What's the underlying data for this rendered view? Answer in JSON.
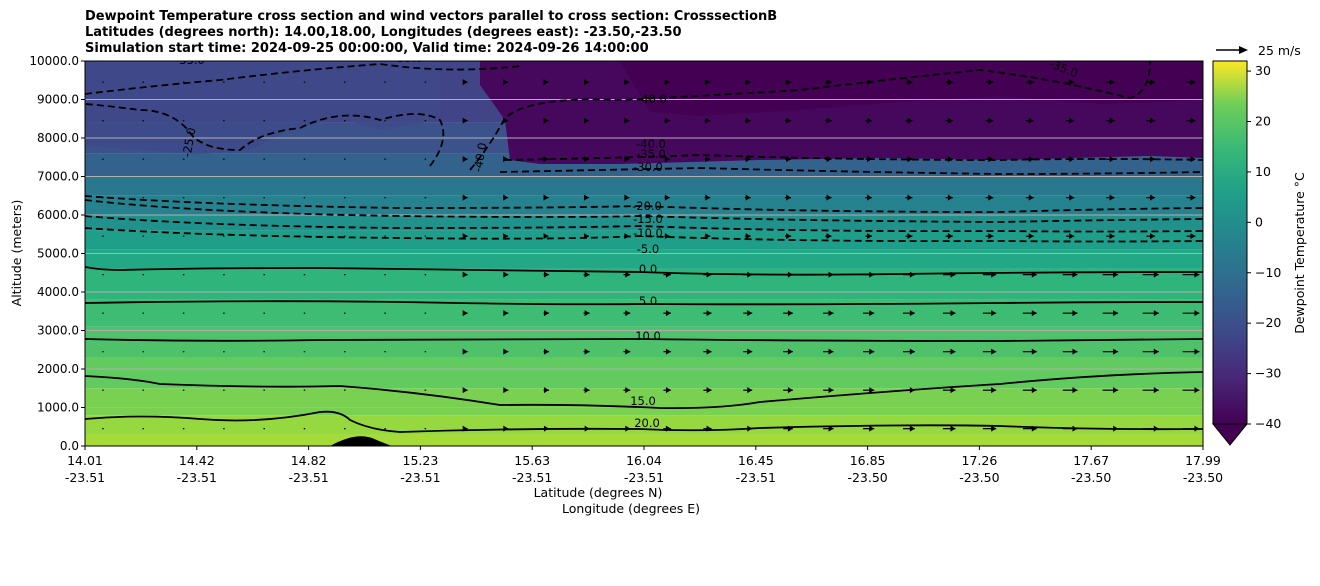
{
  "titles": [
    "Dewpoint Temperature cross section and wind vectors parallel to cross section: CrosssectionB",
    "Latitudes (degrees north): 14.00,18.00, Longitudes (degrees east): -23.50,-23.50",
    "Simulation start time: 2024-09-25 00:00:00, Valid time: 2024-09-26 14:00:00"
  ],
  "chart_data": {
    "type": "heatmap",
    "ylabel": "Altitude (meters)",
    "xlabel_lines": [
      "Latitude (degrees N)",
      "Longitude (degrees E)"
    ],
    "ylim": [
      0,
      10000
    ],
    "y_ticks": [
      "0.0",
      "1000.0",
      "2000.0",
      "3000.0",
      "4000.0",
      "5000.0",
      "6000.0",
      "7000.0",
      "8000.0",
      "9000.0",
      "10000.0"
    ],
    "x_ticks": [
      {
        "lat": "14.01",
        "lon": "-23.51"
      },
      {
        "lat": "14.42",
        "lon": "-23.51"
      },
      {
        "lat": "14.82",
        "lon": "-23.51"
      },
      {
        "lat": "15.23",
        "lon": "-23.51"
      },
      {
        "lat": "15.63",
        "lon": "-23.51"
      },
      {
        "lat": "16.04",
        "lon": "-23.51"
      },
      {
        "lat": "16.45",
        "lon": "-23.51"
      },
      {
        "lat": "16.85",
        "lon": "-23.50"
      },
      {
        "lat": "17.26",
        "lon": "-23.50"
      },
      {
        "lat": "17.67",
        "lon": "-23.50"
      },
      {
        "lat": "17.99",
        "lon": "-23.50"
      }
    ],
    "grid": "horizontal",
    "colorbar": {
      "label": "Dewpoint Temperature °C",
      "range": [
        -40,
        32
      ],
      "ticks": [
        "30",
        "20",
        "10",
        "0",
        "−10",
        "−20",
        "−30",
        "−40"
      ],
      "extend": "min",
      "colormap": "viridis"
    },
    "contour_labels": [
      "-40.0",
      "-40.0",
      "-35.0",
      "-30.0",
      "-20.0",
      "-15.0",
      "-10.0",
      "-5.0",
      "0.0",
      "5.0",
      "10.0",
      "15.0",
      "20.0",
      "-25.0",
      "-40.0",
      "-35.0",
      "-35.0",
      "-35.0"
    ],
    "quiver_key": "25 m/s"
  }
}
